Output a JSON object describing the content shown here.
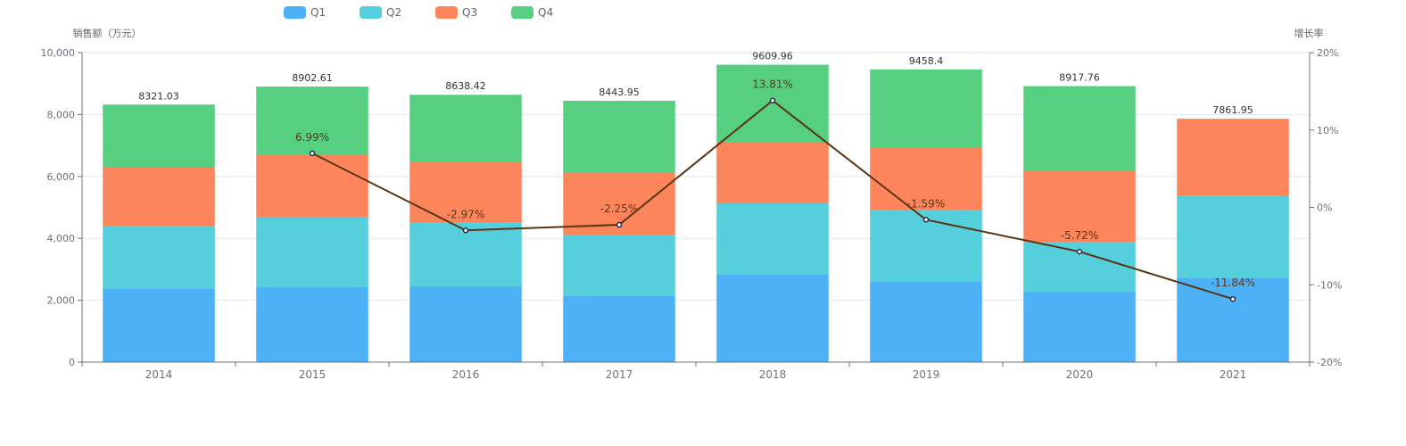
{
  "chart_data": {
    "type": "bar",
    "stacked": true,
    "title": "",
    "categories": [
      "2014",
      "2015",
      "2016",
      "2017",
      "2018",
      "2019",
      "2020",
      "2021"
    ],
    "series": [
      {
        "name": "Q1",
        "color": "#4db1f5",
        "values": [
          2363,
          2421,
          2450,
          2133,
          2824,
          2594,
          2277,
          2709
        ]
      },
      {
        "name": "Q2",
        "color": "#56cfdd",
        "values": [
          2046,
          2276,
          2074,
          1988,
          2306,
          2334,
          1613,
          2680
        ]
      },
      {
        "name": "Q3",
        "color": "#fc855b",
        "values": [
          1873,
          2018,
          1931,
          2017,
          1959,
          2017,
          2277,
          2472.95
        ]
      },
      {
        "name": "Q4",
        "color": "#56d080",
        "values": [
          2039.03,
          2187.61,
          2183.42,
          2305.95,
          2520.96,
          2513.4,
          2750.76,
          0
        ]
      }
    ],
    "totals": [
      "8321.03",
      "8902.61",
      "8638.42",
      "8443.95",
      "9609.96",
      "9458.4",
      "8917.76",
      "7861.95"
    ],
    "line_series": {
      "name": "增长率",
      "color": "#5b3414",
      "categories": [
        "2015",
        "2016",
        "2017",
        "2018",
        "2019",
        "2020",
        "2021"
      ],
      "values": [
        6.99,
        -2.97,
        -2.25,
        13.81,
        -1.59,
        -5.72,
        -11.84
      ],
      "labels": [
        "6.99%",
        "-2.97%",
        "-2.25%",
        "13.81%",
        "-1.59%",
        "-5.72%",
        "-11.84%"
      ]
    },
    "y_left": {
      "label": "销售额（万元）",
      "range": [
        0,
        10000
      ],
      "ticks": [
        0,
        2000,
        4000,
        6000,
        8000,
        10000
      ],
      "tick_labels": [
        "0",
        "2,000",
        "4,000",
        "6,000",
        "8,000",
        "10,000"
      ]
    },
    "y_right": {
      "label": "增长率",
      "range": [
        -20,
        20
      ],
      "ticks": [
        -20,
        -10,
        0,
        10,
        20
      ],
      "tick_labels": [
        "-20%",
        "-10%",
        "0%",
        "10%",
        "20%"
      ]
    },
    "xlabel": "",
    "grid": true,
    "legend": {
      "position": "top-left",
      "items": [
        "Q1",
        "Q2",
        "Q3",
        "Q4"
      ]
    }
  }
}
